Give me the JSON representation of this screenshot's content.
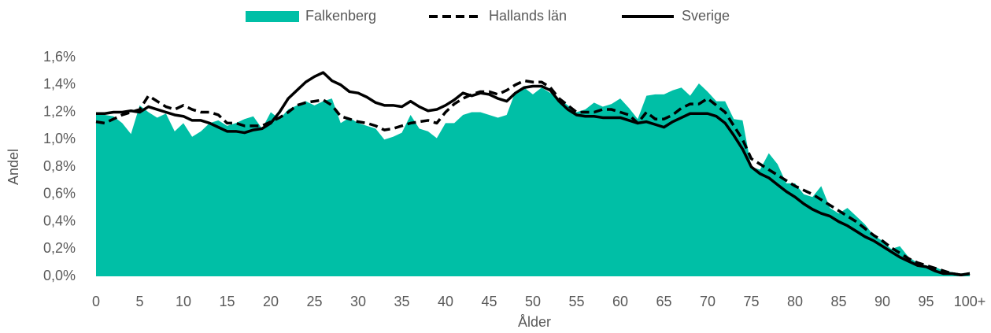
{
  "chart_data": {
    "type": "line",
    "xlabel": "Ålder",
    "ylabel": "Andel",
    "categories": [
      "0",
      null,
      null,
      null,
      null,
      "5",
      null,
      null,
      null,
      null,
      "10",
      null,
      null,
      null,
      null,
      "15",
      null,
      null,
      null,
      null,
      "20",
      null,
      null,
      null,
      null,
      "25",
      null,
      null,
      null,
      null,
      "30",
      null,
      null,
      null,
      null,
      "35",
      null,
      null,
      null,
      null,
      "40",
      null,
      null,
      null,
      null,
      "45",
      null,
      null,
      null,
      null,
      "50",
      null,
      null,
      null,
      null,
      "55",
      null,
      null,
      null,
      null,
      "60",
      null,
      null,
      null,
      null,
      "65",
      null,
      null,
      null,
      null,
      "70",
      null,
      null,
      null,
      null,
      "75",
      null,
      null,
      null,
      null,
      "80",
      null,
      null,
      null,
      null,
      "85",
      null,
      null,
      null,
      null,
      "90",
      null,
      null,
      null,
      null,
      "95",
      null,
      null,
      null,
      null,
      "100+"
    ],
    "ylim": [
      0,
      1.6
    ],
    "yticks": [
      {
        "value": 0,
        "label": "0,0%"
      },
      {
        "value": 0.2,
        "label": "0,2%"
      },
      {
        "value": 0.4,
        "label": "0,4%"
      },
      {
        "value": 0.6,
        "label": "0,6%"
      },
      {
        "value": 0.8,
        "label": "0,8%"
      },
      {
        "value": 1.0,
        "label": "1,0%"
      },
      {
        "value": 1.2,
        "label": "1,2%"
      },
      {
        "value": 1.4,
        "label": "1,4%"
      },
      {
        "value": 1.6,
        "label": "1,6%"
      }
    ],
    "legend": "top",
    "series": [
      {
        "name": "Falkenberg",
        "type": "area",
        "color": "#00bfa6",
        "values": [
          1.2,
          1.18,
          1.17,
          1.12,
          1.04,
          1.25,
          1.2,
          1.16,
          1.19,
          1.06,
          1.12,
          1.02,
          1.06,
          1.12,
          1.14,
          1.1,
          1.12,
          1.15,
          1.17,
          1.08,
          1.2,
          1.15,
          1.22,
          1.25,
          1.28,
          1.25,
          1.28,
          1.3,
          1.12,
          1.16,
          1.12,
          1.1,
          1.08,
          1.0,
          1.02,
          1.05,
          1.18,
          1.08,
          1.06,
          1.01,
          1.12,
          1.12,
          1.18,
          1.2,
          1.2,
          1.18,
          1.16,
          1.18,
          1.35,
          1.38,
          1.33,
          1.38,
          1.34,
          1.3,
          1.25,
          1.2,
          1.22,
          1.27,
          1.24,
          1.26,
          1.3,
          1.23,
          1.15,
          1.32,
          1.33,
          1.33,
          1.36,
          1.38,
          1.32,
          1.41,
          1.35,
          1.28,
          1.28,
          1.15,
          1.14,
          0.8,
          0.78,
          0.9,
          0.82,
          0.68,
          0.68,
          0.6,
          0.58,
          0.66,
          0.5,
          0.46,
          0.5,
          0.44,
          0.38,
          0.3,
          0.26,
          0.2,
          0.22,
          0.14,
          0.1,
          0.08,
          0.07,
          0.04,
          0.03,
          0.02,
          0.03
        ]
      },
      {
        "name": "Hallands län",
        "type": "line",
        "dashed": true,
        "color": "#000000",
        "values": [
          1.13,
          1.12,
          1.15,
          1.18,
          1.2,
          1.22,
          1.32,
          1.28,
          1.24,
          1.22,
          1.25,
          1.22,
          1.2,
          1.2,
          1.18,
          1.12,
          1.12,
          1.1,
          1.1,
          1.1,
          1.13,
          1.16,
          1.2,
          1.25,
          1.27,
          1.28,
          1.29,
          1.25,
          1.17,
          1.15,
          1.13,
          1.12,
          1.1,
          1.07,
          1.08,
          1.1,
          1.12,
          1.13,
          1.14,
          1.12,
          1.2,
          1.26,
          1.3,
          1.33,
          1.35,
          1.35,
          1.33,
          1.36,
          1.4,
          1.43,
          1.42,
          1.42,
          1.38,
          1.3,
          1.25,
          1.2,
          1.2,
          1.2,
          1.22,
          1.22,
          1.2,
          1.18,
          1.12,
          1.2,
          1.15,
          1.15,
          1.18,
          1.23,
          1.26,
          1.26,
          1.3,
          1.25,
          1.2,
          1.1,
          1.0,
          0.86,
          0.82,
          0.78,
          0.74,
          0.7,
          0.66,
          0.63,
          0.6,
          0.56,
          0.52,
          0.48,
          0.44,
          0.4,
          0.35,
          0.3,
          0.26,
          0.21,
          0.17,
          0.13,
          0.1,
          0.08,
          0.06,
          0.04,
          0.02,
          0.01,
          0.02
        ]
      },
      {
        "name": "Sverige",
        "type": "line",
        "dashed": false,
        "color": "#000000",
        "values": [
          1.19,
          1.19,
          1.2,
          1.2,
          1.21,
          1.2,
          1.24,
          1.22,
          1.2,
          1.18,
          1.17,
          1.14,
          1.14,
          1.12,
          1.09,
          1.06,
          1.06,
          1.05,
          1.07,
          1.08,
          1.12,
          1.2,
          1.3,
          1.36,
          1.42,
          1.46,
          1.49,
          1.43,
          1.4,
          1.35,
          1.34,
          1.31,
          1.27,
          1.25,
          1.25,
          1.24,
          1.28,
          1.24,
          1.21,
          1.22,
          1.25,
          1.29,
          1.34,
          1.32,
          1.34,
          1.33,
          1.3,
          1.28,
          1.34,
          1.38,
          1.39,
          1.39,
          1.36,
          1.28,
          1.22,
          1.18,
          1.17,
          1.17,
          1.16,
          1.16,
          1.16,
          1.14,
          1.12,
          1.13,
          1.11,
          1.09,
          1.13,
          1.16,
          1.19,
          1.19,
          1.19,
          1.17,
          1.12,
          1.03,
          0.93,
          0.8,
          0.75,
          0.72,
          0.67,
          0.62,
          0.58,
          0.53,
          0.49,
          0.46,
          0.44,
          0.4,
          0.37,
          0.33,
          0.29,
          0.26,
          0.22,
          0.18,
          0.14,
          0.11,
          0.08,
          0.07,
          0.04,
          0.02,
          0.02,
          0.01,
          0.02
        ]
      }
    ]
  }
}
